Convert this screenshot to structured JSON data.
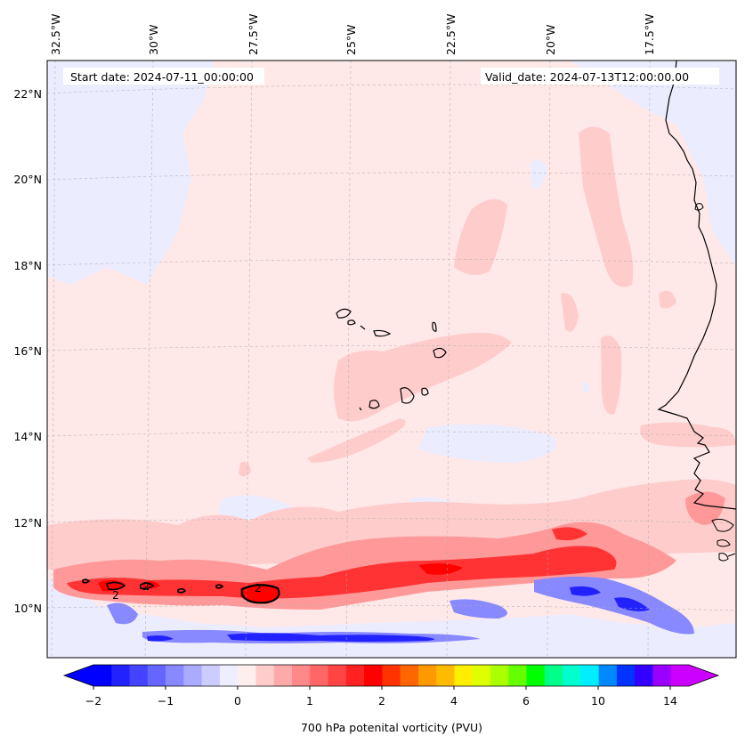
{
  "header": {
    "start_date": "Start date: 2024-07-11_00:00:00",
    "valid_date": "Valid_date: 2024-07-13T12:00:00.00"
  },
  "lon_labels": [
    "32.5°W",
    "30°W",
    "27.5°W",
    "25°W",
    "22.5°W",
    "20°W",
    "17.5°W"
  ],
  "lat_labels": [
    "22°N",
    "20°N",
    "18°N",
    "16°N",
    "14°N",
    "12°N",
    "10°N"
  ],
  "contour_labels": [
    "2",
    "2",
    "2"
  ],
  "colorbar": {
    "title": "700 hPa potenital vorticity (PVU)",
    "tick_labels": [
      "−2",
      "−1",
      "0",
      "1",
      "2",
      "4",
      "6",
      "10",
      "14"
    ],
    "colors": [
      "#0000ff",
      "#2222ff",
      "#4444ff",
      "#6666ff",
      "#8888ff",
      "#aaaaff",
      "#ccccff",
      "#eeeeff",
      "#ffeeee",
      "#ffcccc",
      "#ffaaaa",
      "#ff8888",
      "#ff6666",
      "#ff4444",
      "#ff2222",
      "#ff0000",
      "#ff3300",
      "#ff6600",
      "#ff9900",
      "#ffbb00",
      "#ffee00",
      "#ddff00",
      "#aaff00",
      "#66ff00",
      "#00ff00",
      "#00ff88",
      "#00ffcc",
      "#00eeff",
      "#0088ff",
      "#0033ff",
      "#3300ff",
      "#9900ff",
      "#cc00ff"
    ],
    "extend_low_color": "#0000ff",
    "extend_high_color": "#cc00ff"
  },
  "map_colors": {
    "background": "#ffe8e8",
    "light_blue": "#ececff",
    "light_red": "#ffcccc",
    "mid_red": "#ff9999",
    "strong_red": "#ff3333",
    "deep_red": "#ff0000",
    "mid_blue": "#8888ff",
    "deep_blue": "#2222ff",
    "coast": "#000000",
    "grid": "#aaaaaa"
  }
}
